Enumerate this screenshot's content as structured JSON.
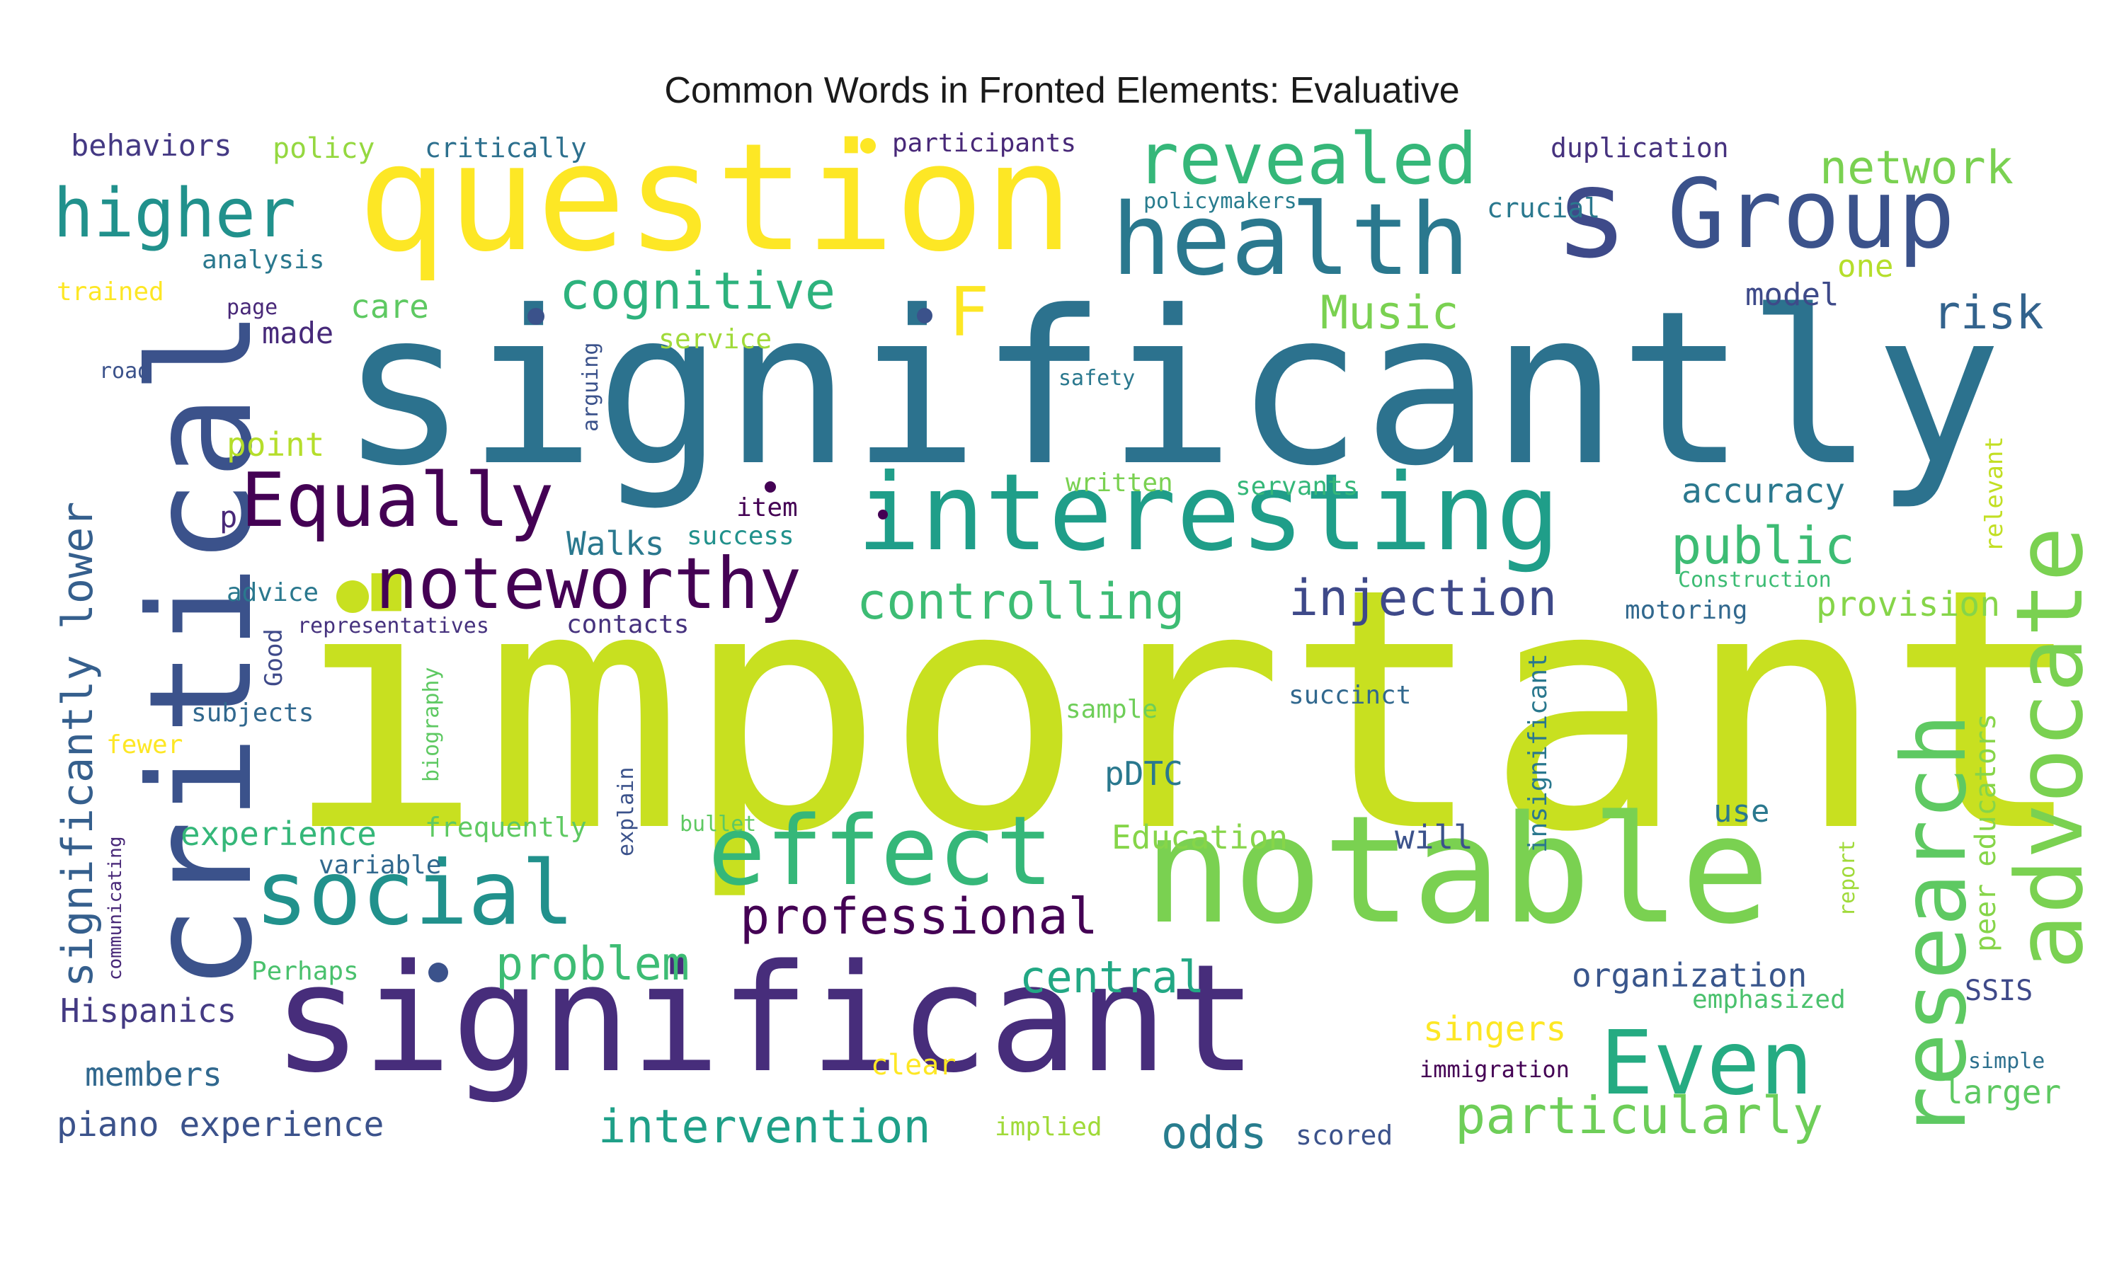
{
  "title": "Common Words in Fronted Elements: Evaluative",
  "words": [
    {
      "id": "important",
      "text": "important",
      "color": "#c8e020"
    },
    {
      "id": "significantly",
      "text": "significantly",
      "color": "#2c728e"
    },
    {
      "id": "significant",
      "text": "significant",
      "color": "#472d7b"
    },
    {
      "id": "question",
      "text": "question",
      "color": "#fde725"
    },
    {
      "id": "notable",
      "text": "notable",
      "color": "#7ad151"
    },
    {
      "id": "critical",
      "text": "critical",
      "color": "#3b528b"
    },
    {
      "id": "interesting",
      "text": "interesting",
      "color": "#1f9e89"
    },
    {
      "id": "health",
      "text": "health",
      "color": "#2a788e"
    },
    {
      "id": "group",
      "text": "Group",
      "color": "#3b528b"
    },
    {
      "id": "s",
      "text": "s",
      "color": "#3e4a89"
    },
    {
      "id": "advocate",
      "text": "advocate",
      "color": "#7ad151"
    },
    {
      "id": "research",
      "text": "research",
      "color": "#5ec962"
    },
    {
      "id": "effect",
      "text": "effect",
      "color": "#35b779"
    },
    {
      "id": "social",
      "text": "social",
      "color": "#21918c"
    },
    {
      "id": "even",
      "text": "Even",
      "color": "#25ab82"
    },
    {
      "id": "revealed",
      "text": "revealed",
      "color": "#35b779"
    },
    {
      "id": "equally",
      "text": "Equally",
      "color": "#440154"
    },
    {
      "id": "noteworthy",
      "text": "noteworthy",
      "color": "#440154"
    },
    {
      "id": "higher",
      "text": "higher",
      "color": "#21918c"
    },
    {
      "id": "cognitive",
      "text": "cognitive",
      "color": "#2db27d"
    },
    {
      "id": "controlling",
      "text": "controlling",
      "color": "#3dbc74"
    },
    {
      "id": "injection",
      "text": "injection",
      "color": "#3e4989"
    },
    {
      "id": "public",
      "text": "public",
      "color": "#3dbc74"
    },
    {
      "id": "network",
      "text": "network",
      "color": "#7ad151"
    },
    {
      "id": "music",
      "text": "Music",
      "color": "#7ad151"
    },
    {
      "id": "risk",
      "text": "risk",
      "color": "#33638d"
    },
    {
      "id": "f",
      "text": "F",
      "color": "#fde725"
    },
    {
      "id": "sig-lower",
      "text": "significantly lower",
      "color": "#355f8d"
    },
    {
      "id": "professional",
      "text": "professional",
      "color": "#440154"
    },
    {
      "id": "particularly",
      "text": "particularly",
      "color": "#6ece58"
    },
    {
      "id": "intervention",
      "text": "intervention",
      "color": "#1fa088"
    },
    {
      "id": "problem",
      "text": "problem",
      "color": "#3dbc74"
    },
    {
      "id": "central",
      "text": "central",
      "color": "#22a884"
    },
    {
      "id": "odds",
      "text": "odds",
      "color": "#287d8e"
    },
    {
      "id": "piano-experience",
      "text": "piano experience",
      "color": "#3b528b"
    },
    {
      "id": "hispanics",
      "text": "Hispanics",
      "color": "#443a83"
    },
    {
      "id": "members",
      "text": "members",
      "color": "#31688e"
    },
    {
      "id": "accuracy",
      "text": "accuracy",
      "color": "#2a788e"
    },
    {
      "id": "provision",
      "text": "provision",
      "color": "#86d549"
    },
    {
      "id": "organization",
      "text": "organization",
      "color": "#39568c"
    },
    {
      "id": "singers",
      "text": "singers",
      "color": "#fde725"
    },
    {
      "id": "peer-educators",
      "text": "peer educators",
      "color": "#86d549"
    },
    {
      "id": "behaviors",
      "text": "behaviors",
      "color": "#443983"
    },
    {
      "id": "policy",
      "text": "policy",
      "color": "#95d840"
    },
    {
      "id": "critically",
      "text": "critically",
      "color": "#2d708e"
    },
    {
      "id": "participants",
      "text": "participants",
      "color": "#482878"
    },
    {
      "id": "duplication",
      "text": "duplication",
      "color": "#46327e"
    },
    {
      "id": "crucial",
      "text": "crucial",
      "color": "#2a788e"
    },
    {
      "id": "policymakers",
      "text": "policymakers",
      "color": "#287c8e"
    },
    {
      "id": "analysis",
      "text": "analysis",
      "color": "#2a788e"
    },
    {
      "id": "trained",
      "text": "trained",
      "color": "#fde725"
    },
    {
      "id": "care",
      "text": "care",
      "color": "#5ec962"
    },
    {
      "id": "page",
      "text": "page",
      "color": "#482878"
    },
    {
      "id": "made",
      "text": "made",
      "color": "#472a7a"
    },
    {
      "id": "service",
      "text": "service",
      "color": "#a0da39"
    },
    {
      "id": "road",
      "text": "road",
      "color": "#3b528b"
    },
    {
      "id": "arguing",
      "text": "arguing",
      "color": "#3b528b"
    },
    {
      "id": "safety",
      "text": "safety",
      "color": "#2a788e"
    },
    {
      "id": "point",
      "text": "point",
      "color": "#b5de2b"
    },
    {
      "id": "model",
      "text": "model",
      "color": "#3e4a89"
    },
    {
      "id": "one",
      "text": "one",
      "color": "#b5de2b"
    },
    {
      "id": "p",
      "text": "p",
      "color": "#482878"
    },
    {
      "id": "item",
      "text": "item",
      "color": "#440154"
    },
    {
      "id": "written",
      "text": "written",
      "color": "#7ad151"
    },
    {
      "id": "servants",
      "text": "servants",
      "color": "#35b779"
    },
    {
      "id": "walks",
      "text": "Walks",
      "color": "#2a788e"
    },
    {
      "id": "success",
      "text": "success",
      "color": "#21918c"
    },
    {
      "id": "advice",
      "text": "advice",
      "color": "#2a788e"
    },
    {
      "id": "representatives",
      "text": "representatives",
      "color": "#46327e"
    },
    {
      "id": "contacts",
      "text": "contacts",
      "color": "#46327e"
    },
    {
      "id": "good",
      "text": "Good",
      "color": "#3e4989"
    },
    {
      "id": "biography",
      "text": "biography",
      "color": "#5ec962"
    },
    {
      "id": "construction",
      "text": "Construction",
      "color": "#3dbc74"
    },
    {
      "id": "motoring",
      "text": "motoring",
      "color": "#31688e"
    },
    {
      "id": "relevant",
      "text": "relevant",
      "color": "#c2df23"
    },
    {
      "id": "insignificant",
      "text": "insignificant",
      "color": "#2a788e"
    },
    {
      "id": "succinct",
      "text": "succinct",
      "color": "#31688e"
    },
    {
      "id": "sample",
      "text": "sample",
      "color": "#6ece58"
    },
    {
      "id": "subjects",
      "text": "subjects",
      "color": "#31688e"
    },
    {
      "id": "fewer",
      "text": "fewer",
      "color": "#fde725"
    },
    {
      "id": "pdtc",
      "text": "pDTC",
      "color": "#2a788e"
    },
    {
      "id": "explain",
      "text": "explain",
      "color": "#3b528b"
    },
    {
      "id": "communicating",
      "text": "communicating",
      "color": "#482878"
    },
    {
      "id": "experience",
      "text": "experience",
      "color": "#35b779"
    },
    {
      "id": "frequently",
      "text": "frequently",
      "color": "#5ec962"
    },
    {
      "id": "bullet",
      "text": "bullet",
      "color": "#5ec962"
    },
    {
      "id": "variable",
      "text": "variable",
      "color": "#31688e"
    },
    {
      "id": "education",
      "text": "Education",
      "color": "#86d549"
    },
    {
      "id": "will",
      "text": "will",
      "color": "#3b528b"
    },
    {
      "id": "use",
      "text": "use",
      "color": "#2a788e"
    },
    {
      "id": "report",
      "text": "report",
      "color": "#a0da39"
    },
    {
      "id": "perhaps",
      "text": "Perhaps",
      "color": "#4ac16d"
    },
    {
      "id": "emphasized",
      "text": "emphasized",
      "color": "#4ac16d"
    },
    {
      "id": "ssis",
      "text": "SSIS",
      "color": "#3e4989"
    },
    {
      "id": "clear",
      "text": "clear",
      "color": "#fde725"
    },
    {
      "id": "immigration",
      "text": "immigration",
      "color": "#440154"
    },
    {
      "id": "simple",
      "text": "simple",
      "color": "#2d708e"
    },
    {
      "id": "larger",
      "text": "larger",
      "color": "#5ec962"
    },
    {
      "id": "implied",
      "text": "implied",
      "color": "#a0da39"
    },
    {
      "id": "scored",
      "text": "scored",
      "color": "#3b528b"
    }
  ],
  "dots": [
    {
      "id": "dot-yellow",
      "color": "#fde725"
    },
    {
      "id": "dot-green",
      "color": "#c8e020"
    },
    {
      "id": "dot-blue1",
      "color": "#3b528b"
    },
    {
      "id": "dot-blue2",
      "color": "#3b528b"
    },
    {
      "id": "dot-blue3",
      "color": "#3b528b"
    },
    {
      "id": "dot-purple1",
      "color": "#440154"
    },
    {
      "id": "dot-purple2",
      "color": "#440154"
    }
  ]
}
